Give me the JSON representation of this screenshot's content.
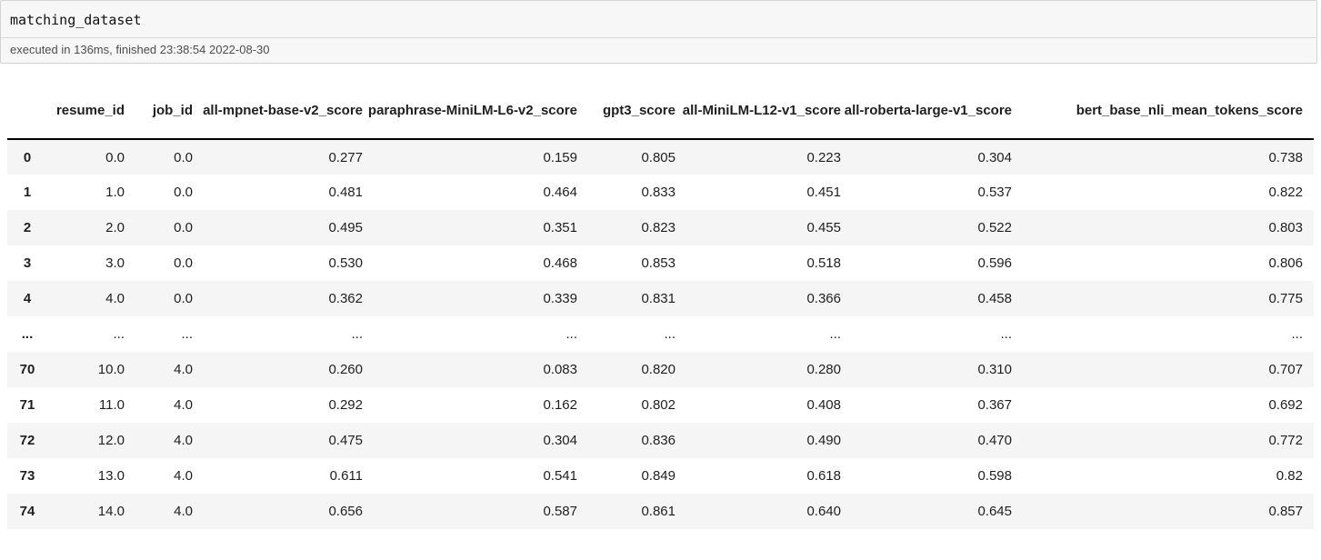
{
  "code_cell": {
    "code": "matching_dataset",
    "status": "executed in 136ms, finished 23:38:54 2022-08-30"
  },
  "table": {
    "columns": [
      "resume_id",
      "job_id",
      "all-mpnet-base-v2_score",
      "paraphrase-MiniLM-L6-v2_score",
      "gpt3_score",
      "all-MiniLM-L12-v1_score",
      "all-roberta-large-v1_score",
      "bert_base_nli_mean_tokens_score"
    ],
    "rows": [
      {
        "index": "0",
        "cells": [
          "0.0",
          "0.0",
          "0.277",
          "0.159",
          "0.805",
          "0.223",
          "0.304",
          "0.738"
        ]
      },
      {
        "index": "1",
        "cells": [
          "1.0",
          "0.0",
          "0.481",
          "0.464",
          "0.833",
          "0.451",
          "0.537",
          "0.822"
        ]
      },
      {
        "index": "2",
        "cells": [
          "2.0",
          "0.0",
          "0.495",
          "0.351",
          "0.823",
          "0.455",
          "0.522",
          "0.803"
        ]
      },
      {
        "index": "3",
        "cells": [
          "3.0",
          "0.0",
          "0.530",
          "0.468",
          "0.853",
          "0.518",
          "0.596",
          "0.806"
        ]
      },
      {
        "index": "4",
        "cells": [
          "4.0",
          "0.0",
          "0.362",
          "0.339",
          "0.831",
          "0.366",
          "0.458",
          "0.775"
        ]
      },
      {
        "index": "...",
        "cells": [
          "...",
          "...",
          "...",
          "...",
          "...",
          "...",
          "...",
          "..."
        ]
      },
      {
        "index": "70",
        "cells": [
          "10.0",
          "4.0",
          "0.260",
          "0.083",
          "0.820",
          "0.280",
          "0.310",
          "0.707"
        ]
      },
      {
        "index": "71",
        "cells": [
          "11.0",
          "4.0",
          "0.292",
          "0.162",
          "0.802",
          "0.408",
          "0.367",
          "0.692"
        ]
      },
      {
        "index": "72",
        "cells": [
          "12.0",
          "4.0",
          "0.475",
          "0.304",
          "0.836",
          "0.490",
          "0.470",
          "0.772"
        ]
      },
      {
        "index": "73",
        "cells": [
          "13.0",
          "4.0",
          "0.611",
          "0.541",
          "0.849",
          "0.618",
          "0.598",
          "0.82"
        ]
      },
      {
        "index": "74",
        "cells": [
          "14.0",
          "4.0",
          "0.656",
          "0.587",
          "0.861",
          "0.640",
          "0.645",
          "0.857"
        ]
      }
    ]
  },
  "colors": {
    "row_stripe": "#f5f5f5",
    "code_cell_bg": "#f7f7f7",
    "code_cell_border": "#d3d3d3",
    "header_rule": "#000000",
    "status_text": "#4d4d4d"
  }
}
